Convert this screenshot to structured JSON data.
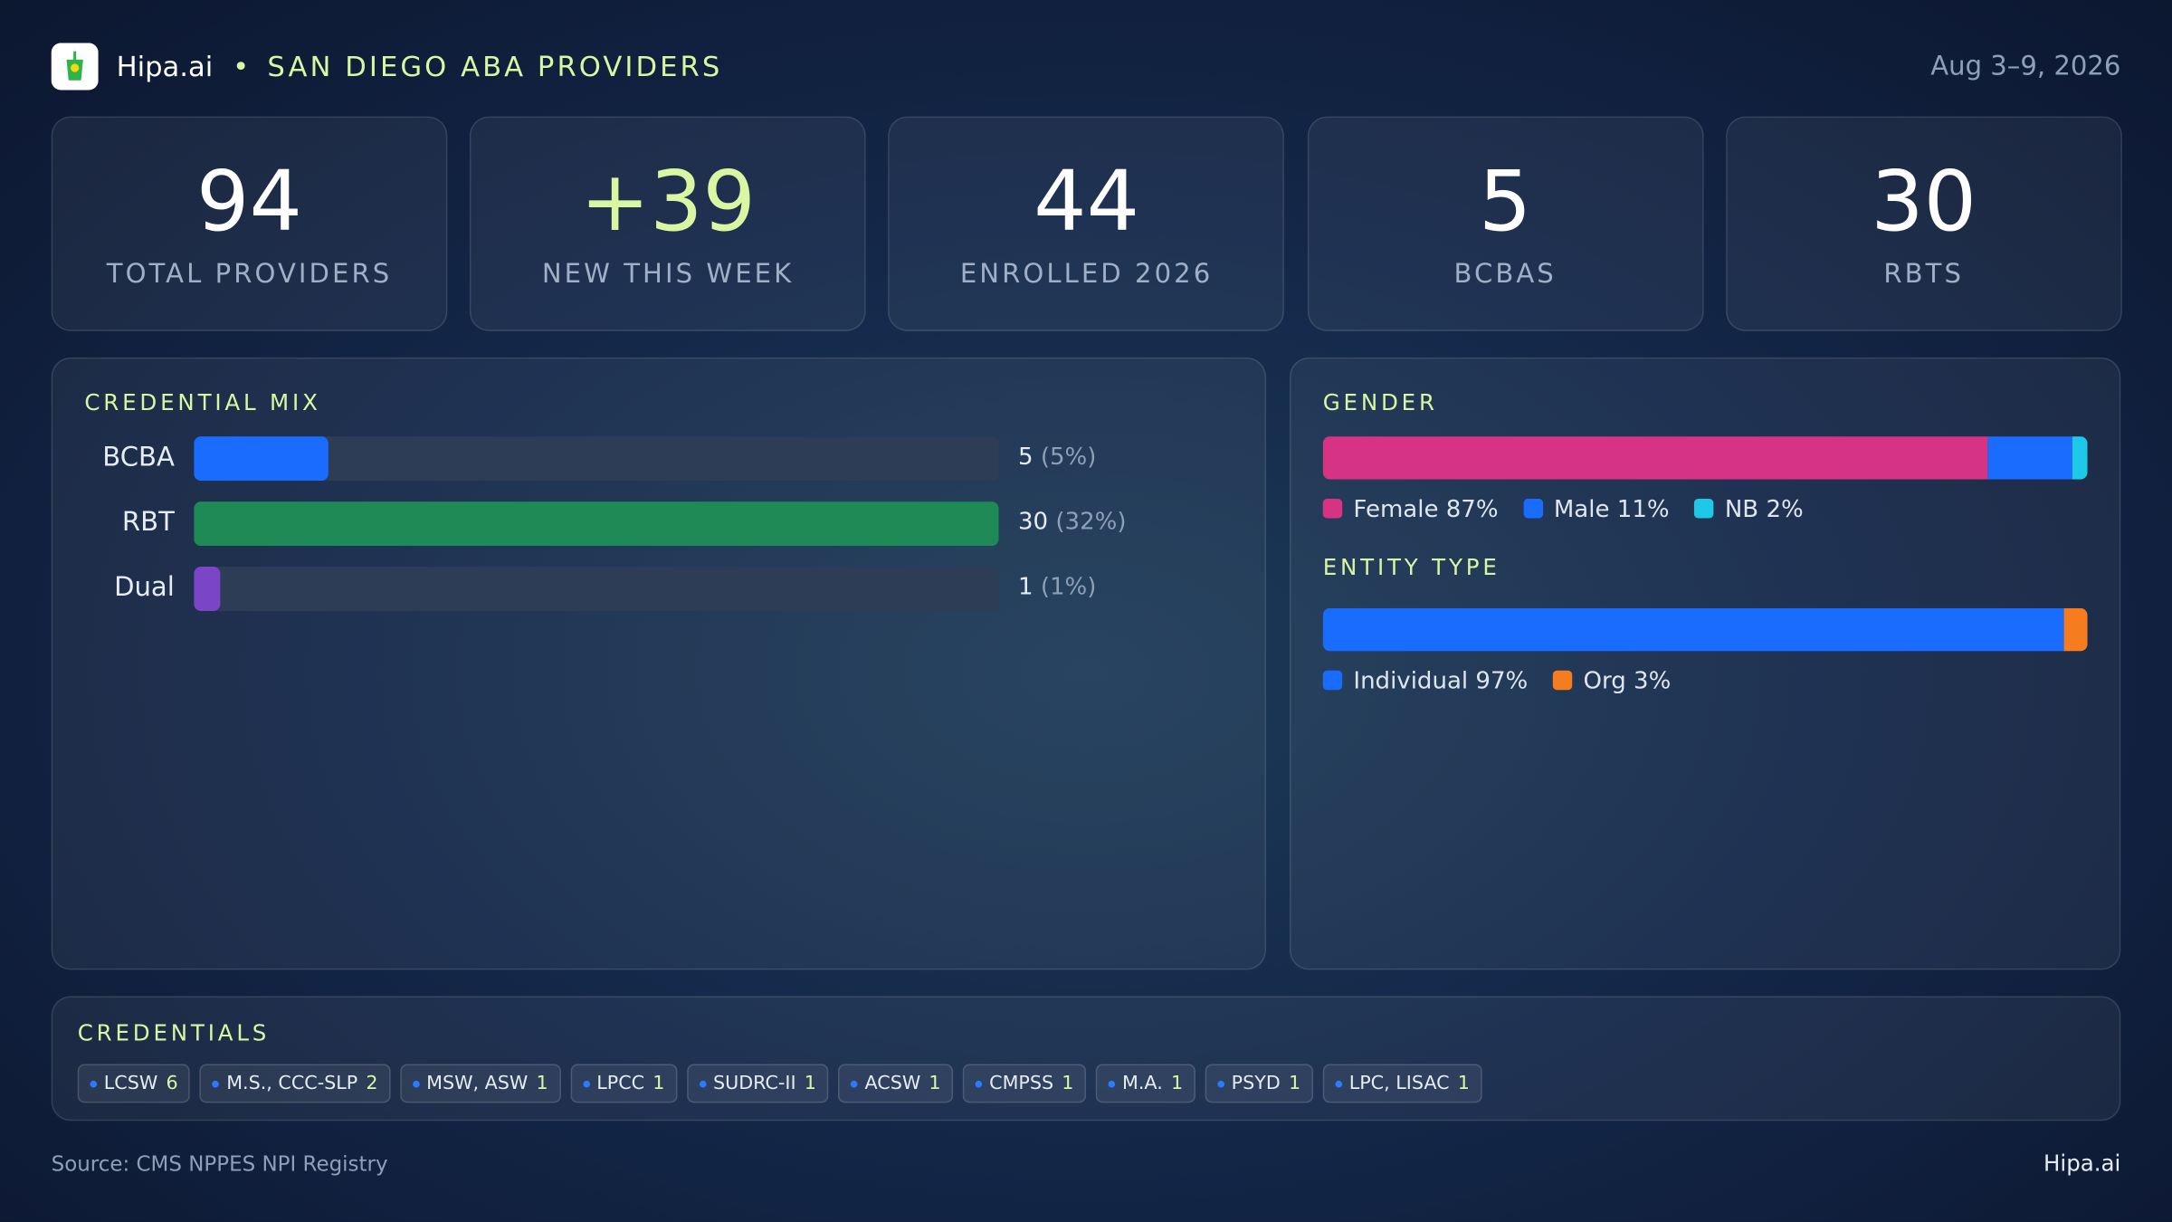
{
  "header": {
    "brand": "Hipa.ai",
    "title": "SAN DIEGO ABA PROVIDERS",
    "date": "Aug 3–9, 2026"
  },
  "kpis": [
    {
      "value": "94",
      "label": "TOTAL PROVIDERS"
    },
    {
      "value": "+39",
      "label": "NEW THIS WEEK"
    },
    {
      "value": "44",
      "label": "ENROLLED 2026"
    },
    {
      "value": "5",
      "label": "BCBAS"
    },
    {
      "value": "30",
      "label": "RBTS"
    }
  ],
  "credential_mix": {
    "type": "bar",
    "title": "CREDENTIAL MIX",
    "categories": [
      "BCBA",
      "RBT",
      "Dual"
    ],
    "values": [
      5,
      30,
      1
    ],
    "percent_labels": [
      "(5%)",
      "(32%)",
      "(1%)"
    ],
    "colors": [
      "#1a6cff",
      "#1e8a55",
      "#7b45c8"
    ],
    "xlim": [
      0,
      30
    ]
  },
  "gender": {
    "type": "stacked-bar",
    "title": "GENDER",
    "xlim": [
      0,
      100
    ],
    "series": [
      {
        "name": "Female",
        "values": [
          87
        ],
        "value_labels": [
          "87%"
        ],
        "color": "#d63384"
      },
      {
        "name": "Male",
        "values": [
          11
        ],
        "value_labels": [
          "11%"
        ],
        "color": "#1a6cff"
      },
      {
        "name": "NB",
        "values": [
          2
        ],
        "value_labels": [
          "2%"
        ],
        "color": "#1ec8e8"
      }
    ]
  },
  "entity_type": {
    "type": "stacked-bar",
    "title": "ENTITY TYPE",
    "xlim": [
      0,
      100
    ],
    "series": [
      {
        "name": "Individual",
        "values": [
          97
        ],
        "value_labels": [
          "97%"
        ],
        "color": "#1a6cff"
      },
      {
        "name": "Org",
        "values": [
          3
        ],
        "value_labels": [
          "3%"
        ],
        "color": "#f57c1f"
      }
    ]
  },
  "credentials": {
    "title": "CREDENTIALS",
    "items": [
      {
        "name": "LCSW",
        "count": "6"
      },
      {
        "name": "M.S., CCC-SLP",
        "count": "2"
      },
      {
        "name": "MSW, ASW",
        "count": "1"
      },
      {
        "name": "LPCC",
        "count": "1"
      },
      {
        "name": "SUDRC-II",
        "count": "1"
      },
      {
        "name": "ACSW",
        "count": "1"
      },
      {
        "name": "CMPSS",
        "count": "1"
      },
      {
        "name": "M.A.",
        "count": "1"
      },
      {
        "name": "PSYD",
        "count": "1"
      },
      {
        "name": "LPC, LISAC",
        "count": "1"
      }
    ]
  },
  "footer": {
    "source": "Source: CMS NPPES NPI Registry",
    "brand": "Hipa.ai"
  }
}
